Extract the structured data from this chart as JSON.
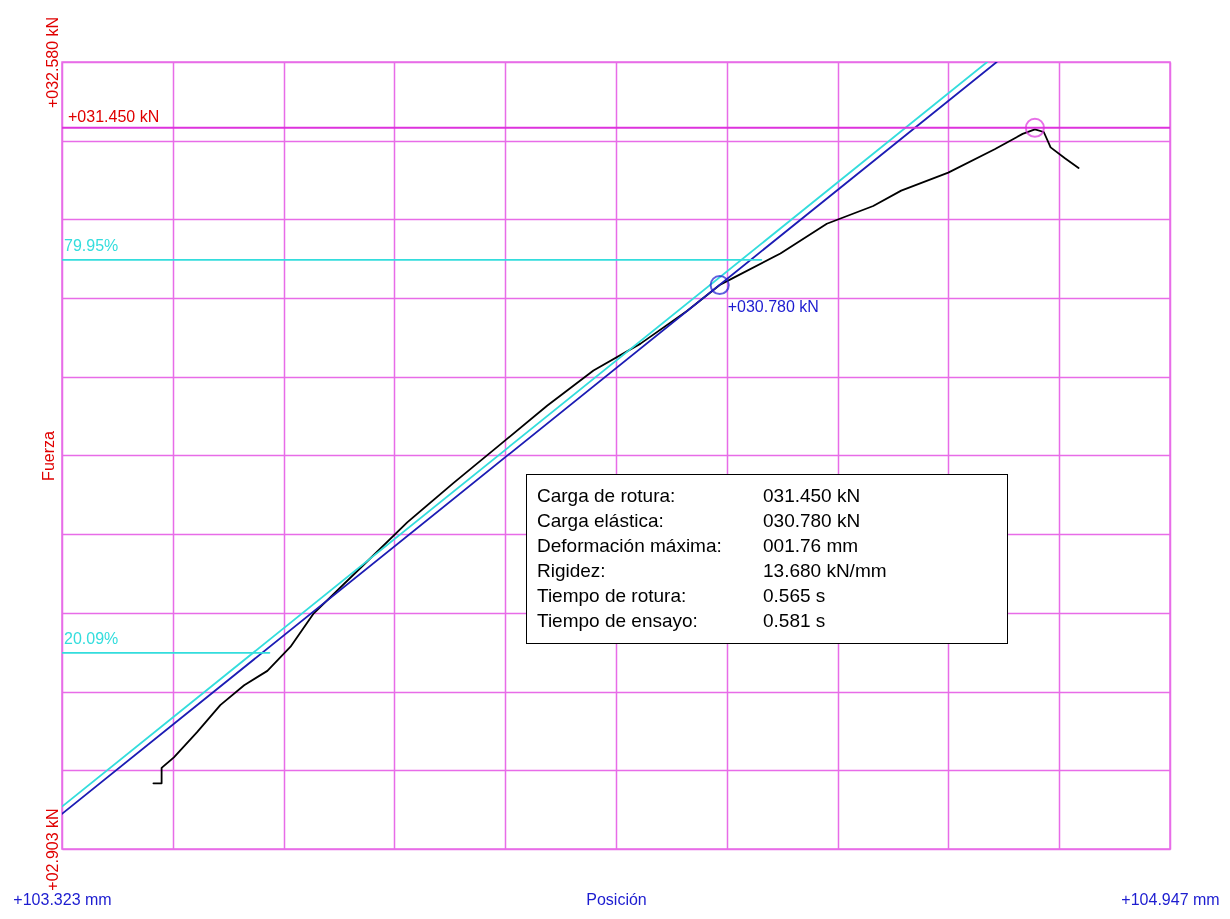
{
  "chart_data": {
    "type": "line",
    "xlabel": "Posición",
    "ylabel": "Fuerza",
    "xlim": [
      103.323,
      104.947
    ],
    "ylim": [
      2.903,
      32.58
    ],
    "xticks": [
      {
        "value": 103.323,
        "label": "+103.323 mm"
      },
      {
        "value": 103.485,
        "label": null
      },
      {
        "value": 103.648,
        "label": null
      },
      {
        "value": 103.81,
        "label": null
      },
      {
        "value": 103.973,
        "label": null
      },
      {
        "value": 104.135,
        "label": null
      },
      {
        "value": 104.297,
        "label": null
      },
      {
        "value": 104.46,
        "label": null
      },
      {
        "value": 104.622,
        "label": null
      },
      {
        "value": 104.785,
        "label": null
      },
      {
        "value": 104.947,
        "label": "+104.947 mm"
      }
    ],
    "yticks": [
      {
        "value": 2.903,
        "label": "+02.903 kN"
      },
      {
        "value": 5.871,
        "label": null
      },
      {
        "value": 8.838,
        "label": null
      },
      {
        "value": 11.806,
        "label": null
      },
      {
        "value": 14.774,
        "label": null
      },
      {
        "value": 17.742,
        "label": null
      },
      {
        "value": 20.709,
        "label": null
      },
      {
        "value": 23.677,
        "label": null
      },
      {
        "value": 26.645,
        "label": null
      },
      {
        "value": 29.612,
        "label": null
      },
      {
        "value": 32.58,
        "label": "+032.580 kN"
      }
    ],
    "grid": true,
    "series": [
      {
        "color": "#000000",
        "x": [
          103.457,
          103.469,
          103.469,
          103.487,
          103.521,
          103.555,
          103.59,
          103.624,
          103.658,
          103.692,
          103.76,
          103.829,
          103.897,
          103.966,
          104.034,
          104.102,
          104.171,
          104.239,
          104.287,
          104.307,
          104.376,
          104.444,
          104.512,
          104.553,
          104.622,
          104.69,
          104.731,
          104.749,
          104.762,
          104.772,
          104.793,
          104.813
        ],
        "values": [
          5.38,
          5.38,
          5.96,
          6.36,
          7.31,
          8.33,
          9.08,
          9.62,
          10.53,
          11.79,
          13.49,
          15.22,
          16.71,
          18.17,
          19.62,
          20.95,
          21.96,
          23.19,
          24.17,
          24.44,
          25.36,
          26.48,
          27.15,
          27.73,
          28.41,
          29.29,
          29.87,
          30.04,
          29.94,
          29.36,
          28.95,
          28.58
        ]
      },
      {
        "color": "#33dddd",
        "x": [
          103.323,
          104.679
        ],
        "values": [
          4.5,
          32.58
        ]
      },
      {
        "color": "#1c1cb4",
        "x": [
          103.323,
          104.693
        ],
        "values": [
          4.23,
          32.58
        ]
      },
      {
        "name": "79.95%",
        "color": "#33dddd",
        "x": [
          103.323,
          104.348
        ],
        "values": [
          25.12,
          25.12
        ]
      },
      {
        "name": "20.09%",
        "color": "#33dddd",
        "x": [
          103.323,
          103.627
        ],
        "values": [
          10.3,
          10.3
        ]
      },
      {
        "type": "scatter",
        "marker": "circle",
        "color": "#1c1cd0",
        "x": [
          104.287
        ],
        "values": [
          24.17
        ]
      },
      {
        "type": "scatter",
        "marker": "circle",
        "color": "#dd33dd",
        "x": [
          104.749
        ],
        "values": [
          30.1
        ]
      }
    ],
    "ref_lines": [
      {
        "axis": "y",
        "value": 30.1,
        "label": "+031.450 kN",
        "color": "#dd33dd"
      }
    ],
    "annotations": [
      {
        "text": "+030.780 kN",
        "x": 104.287,
        "y": 24.17
      },
      "Carga de rotura: 031.450 kN",
      "Carga elástica: 030.780 kN",
      "Deformación máxima: 001.76 mm",
      "Rigidez: 13.680 kN/mm",
      "Tiempo de rotura: 0.565 s",
      "Tiempo de ensayo: 0.581 s"
    ]
  }
}
